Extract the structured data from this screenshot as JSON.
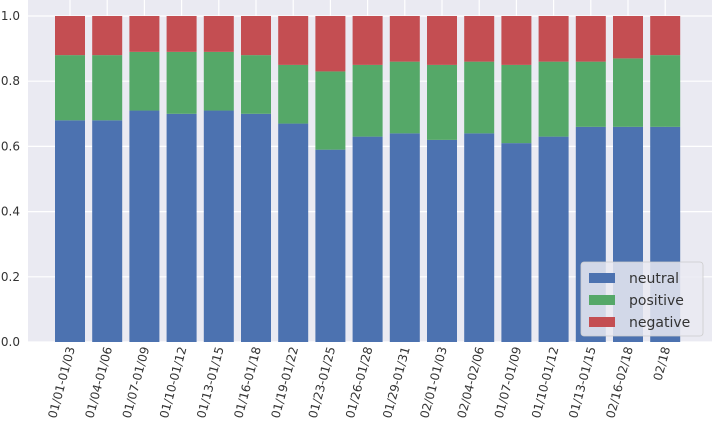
{
  "chart_data": {
    "type": "bar",
    "stacked": true,
    "normalized": true,
    "categories": [
      "01/01-01/03",
      "01/04-01/06",
      "01/07-01/09",
      "01/10-01/12",
      "01/13-01/15",
      "01/16-01/18",
      "01/19-01/22",
      "01/23-01/25",
      "01/26-01/28",
      "01/29-01/31",
      "02/01-01/03",
      "02/04-02/06",
      "01/07-01/09",
      "01/10-01/12",
      "01/13-01/15",
      "02/16-02/18",
      "02/18"
    ],
    "series": [
      {
        "name": "neutral",
        "color": "#4c72b0",
        "values": [
          0.68,
          0.68,
          0.71,
          0.7,
          0.71,
          0.7,
          0.67,
          0.59,
          0.63,
          0.64,
          0.62,
          0.64,
          0.61,
          0.63,
          0.66,
          0.66,
          0.66
        ]
      },
      {
        "name": "positive",
        "color": "#55a868",
        "values": [
          0.2,
          0.2,
          0.18,
          0.19,
          0.18,
          0.18,
          0.18,
          0.24,
          0.22,
          0.22,
          0.23,
          0.22,
          0.24,
          0.23,
          0.2,
          0.21,
          0.22
        ]
      },
      {
        "name": "negative",
        "color": "#c44e52",
        "values": [
          0.12,
          0.12,
          0.11,
          0.11,
          0.11,
          0.12,
          0.15,
          0.17,
          0.15,
          0.14,
          0.15,
          0.14,
          0.15,
          0.14,
          0.14,
          0.13,
          0.12
        ]
      }
    ],
    "yticks": [
      "0.0",
      "0.2",
      "0.4",
      "0.6",
      "0.8",
      "1.0"
    ],
    "ylim": [
      0,
      1.0
    ],
    "grid": true,
    "legend_position": "bottom-right",
    "background": "#eaeaf2"
  }
}
